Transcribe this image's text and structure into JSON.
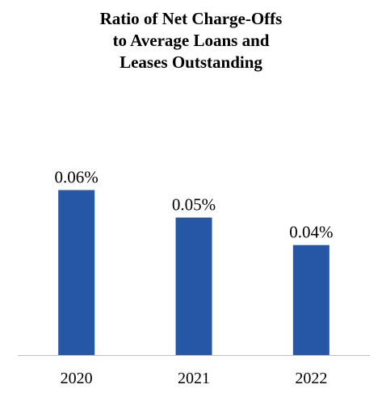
{
  "chart_data": {
    "type": "bar",
    "title_lines": [
      "Ratio of Net Charge-Offs",
      "to Average Loans and",
      "Leases Outstanding"
    ],
    "categories": [
      "2020",
      "2021",
      "2022"
    ],
    "values": [
      0.06,
      0.05,
      0.04
    ],
    "data_labels": [
      "0.06%",
      "0.05%",
      "0.04%"
    ],
    "unit": "%",
    "ylim": [
      0,
      0.0895
    ],
    "grid": false,
    "legend": "none",
    "bar_color": "#2657A6",
    "axis_color": "#BFBFBF"
  }
}
